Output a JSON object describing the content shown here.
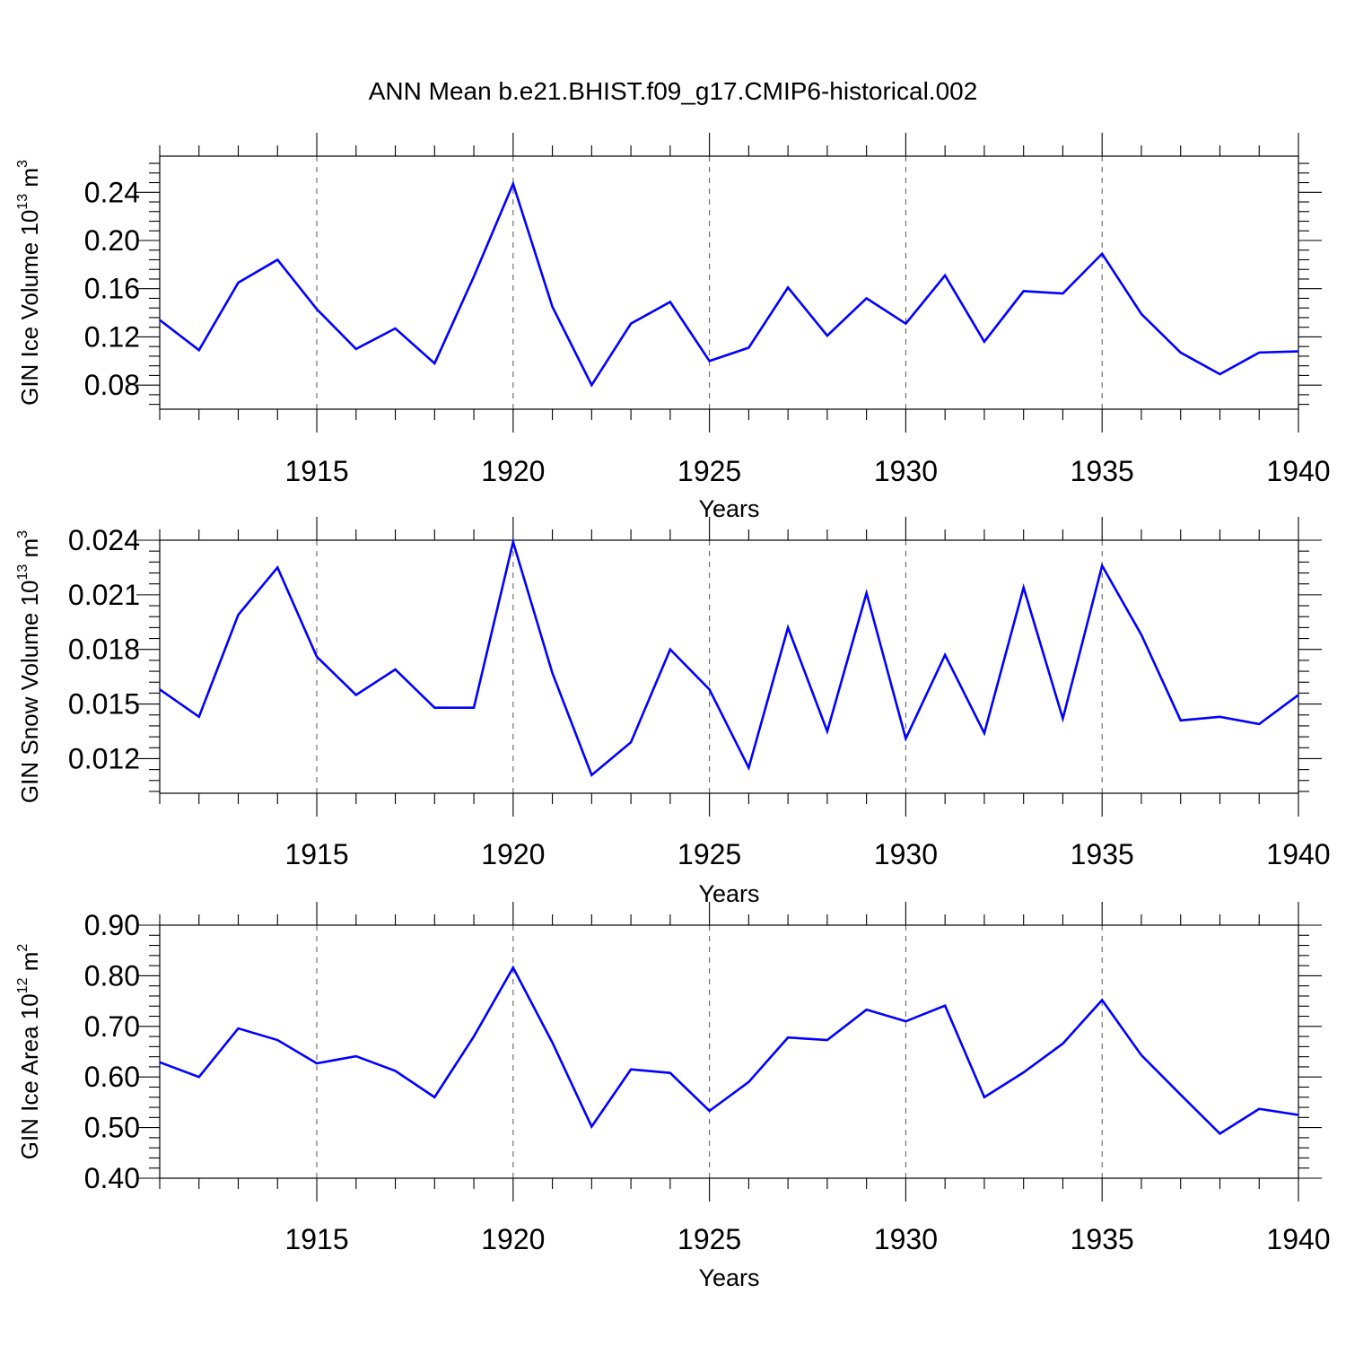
{
  "title": "ANN Mean b.e21.BHIST.f09_g17.CMIP6-historical.002",
  "colors": {
    "line": "#0000ff",
    "axis": "#000000",
    "grid": "#555555"
  },
  "chart_data": [
    {
      "type": "line",
      "ylabel": {
        "main": "GIN Ice Volume 10",
        "sup1": "13",
        "unit": " m",
        "sup2": "3"
      },
      "xlabel": "Years",
      "xlim": [
        1911,
        1940
      ],
      "ylim": [
        0.06,
        0.27
      ],
      "yticks": [
        "0.08",
        "0.12",
        "0.16",
        "0.20",
        "0.24"
      ],
      "xticks": [
        "1915",
        "1920",
        "1925",
        "1930",
        "1935",
        "1940"
      ],
      "grid_x": true,
      "x": [
        1911,
        1912,
        1913,
        1914,
        1915,
        1916,
        1917,
        1918,
        1919,
        1920,
        1921,
        1922,
        1923,
        1924,
        1925,
        1926,
        1927,
        1928,
        1929,
        1930,
        1931,
        1932,
        1933,
        1934,
        1935,
        1936,
        1937,
        1938,
        1939,
        1940
      ],
      "series": [
        {
          "values": [
            0.134,
            0.109,
            0.165,
            0.184,
            0.143,
            0.11,
            0.127,
            0.098,
            0.17,
            0.247,
            0.145,
            0.08,
            0.131,
            0.149,
            0.1,
            0.111,
            0.161,
            0.121,
            0.152,
            0.131,
            0.171,
            0.116,
            0.158,
            0.156,
            0.189,
            0.139,
            0.107,
            0.089,
            0.107,
            0.108
          ]
        }
      ]
    },
    {
      "type": "line",
      "ylabel": {
        "main": "GIN Snow Volume 10",
        "sup1": "13",
        "unit": " m",
        "sup2": "3"
      },
      "xlabel": "Years",
      "xlim": [
        1911,
        1940
      ],
      "ylim": [
        0.0101,
        0.024
      ],
      "yticks": [
        "0.012",
        "0.015",
        "0.018",
        "0.021",
        "0.024"
      ],
      "xticks": [
        "1915",
        "1920",
        "1925",
        "1930",
        "1935",
        "1940"
      ],
      "grid_x": true,
      "x": [
        1911,
        1912,
        1913,
        1914,
        1915,
        1916,
        1917,
        1918,
        1919,
        1920,
        1921,
        1922,
        1923,
        1924,
        1925,
        1926,
        1927,
        1928,
        1929,
        1930,
        1931,
        1932,
        1933,
        1934,
        1935,
        1936,
        1937,
        1938,
        1939,
        1940
      ],
      "series": [
        {
          "values": [
            0.0158,
            0.0143,
            0.0199,
            0.0225,
            0.0176,
            0.0155,
            0.0169,
            0.0148,
            0.0148,
            0.0239,
            0.0167,
            0.0111,
            0.0129,
            0.018,
            0.0158,
            0.0115,
            0.0192,
            0.0135,
            0.0211,
            0.0131,
            0.0177,
            0.0134,
            0.0214,
            0.0142,
            0.0226,
            0.0188,
            0.0141,
            0.0143,
            0.0139,
            0.0155
          ]
        }
      ]
    },
    {
      "type": "line",
      "ylabel": {
        "main": "GIN Ice Area 10",
        "sup1": "12",
        "unit": " m",
        "sup2": "2"
      },
      "xlabel": "Years",
      "xlim": [
        1911,
        1940
      ],
      "ylim": [
        0.4,
        0.9
      ],
      "yticks": [
        "0.40",
        "0.50",
        "0.60",
        "0.70",
        "0.80",
        "0.90"
      ],
      "xticks": [
        "1915",
        "1920",
        "1925",
        "1930",
        "1935",
        "1940"
      ],
      "grid_x": true,
      "x": [
        1911,
        1912,
        1913,
        1914,
        1915,
        1916,
        1917,
        1918,
        1919,
        1920,
        1921,
        1922,
        1923,
        1924,
        1925,
        1926,
        1927,
        1928,
        1929,
        1930,
        1931,
        1932,
        1933,
        1934,
        1935,
        1936,
        1937,
        1938,
        1939,
        1940
      ],
      "series": [
        {
          "values": [
            0.629,
            0.6,
            0.696,
            0.673,
            0.627,
            0.641,
            0.612,
            0.56,
            0.68,
            0.816,
            0.668,
            0.502,
            0.615,
            0.608,
            0.533,
            0.59,
            0.678,
            0.673,
            0.733,
            0.71,
            0.741,
            0.56,
            0.609,
            0.666,
            0.752,
            0.643,
            0.565,
            0.488,
            0.537,
            0.525
          ]
        }
      ]
    }
  ]
}
